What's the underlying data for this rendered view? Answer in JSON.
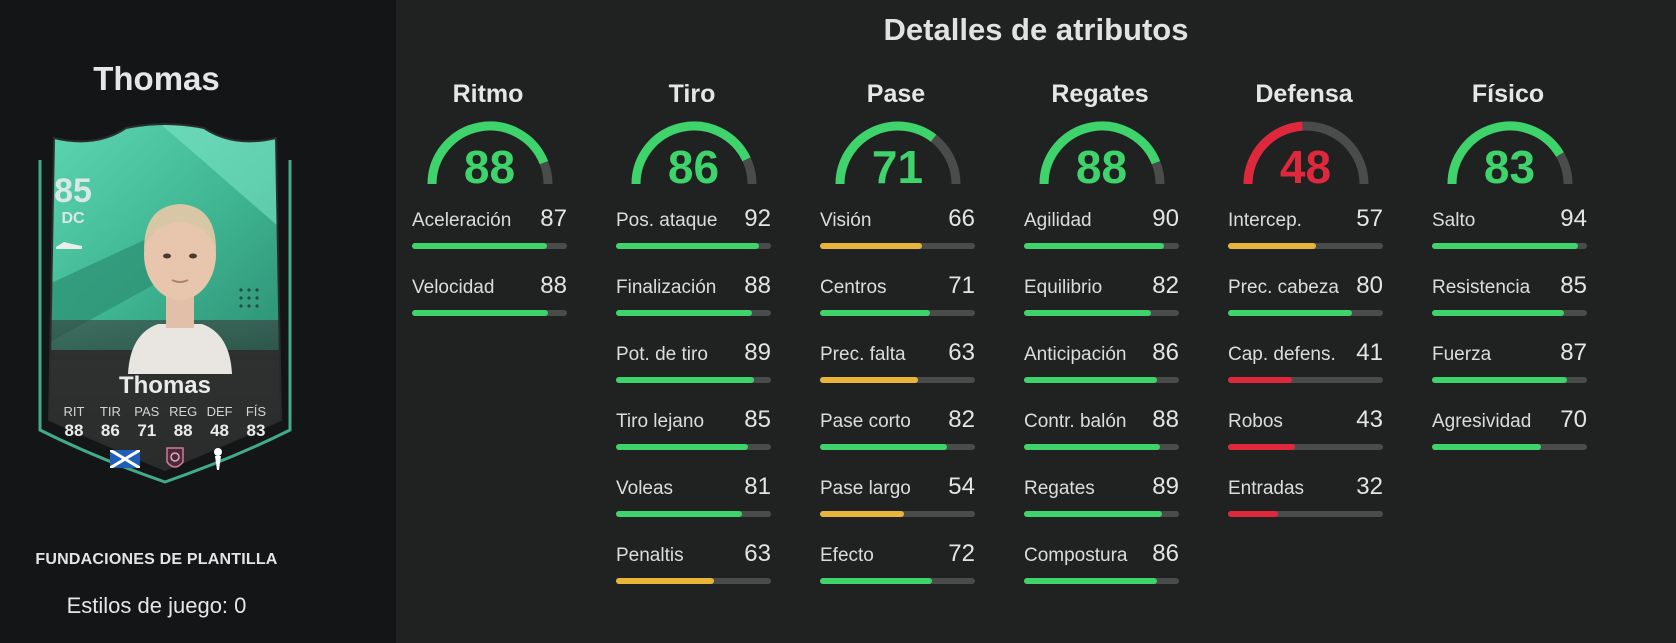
{
  "player": {
    "name": "Thomas",
    "card_name": "Thomas",
    "rating": "85",
    "position": "DC",
    "card_stats": [
      {
        "label": "RIT",
        "value": "88"
      },
      {
        "label": "TIR",
        "value": "86"
      },
      {
        "label": "PAS",
        "value": "71"
      },
      {
        "label": "REG",
        "value": "88"
      },
      {
        "label": "DEF",
        "value": "48"
      },
      {
        "label": "FÍS",
        "value": "83"
      }
    ],
    "badges": [
      "scotland-flag-icon",
      "wsl-league-icon",
      "tottenham-club-icon"
    ]
  },
  "squad_label": "FUNDACIONES DE PLANTILLA",
  "playstyles": "Estilos de juego: 0",
  "attributes": {
    "title": "Detalles de atributos",
    "colors": {
      "high": "#3ed36b",
      "mid": "#e8b53a",
      "low": "#e0283d",
      "track": "#4a4c4c"
    },
    "categories": [
      {
        "name": "Ritmo",
        "value": 88,
        "stats": [
          {
            "name": "Aceleración",
            "value": 87
          },
          {
            "name": "Velocidad",
            "value": 88
          }
        ]
      },
      {
        "name": "Tiro",
        "value": 86,
        "stats": [
          {
            "name": "Pos. ataque",
            "value": 92
          },
          {
            "name": "Finalización",
            "value": 88
          },
          {
            "name": "Pot. de tiro",
            "value": 89
          },
          {
            "name": "Tiro lejano",
            "value": 85
          },
          {
            "name": "Voleas",
            "value": 81
          },
          {
            "name": "Penaltis",
            "value": 63
          }
        ]
      },
      {
        "name": "Pase",
        "value": 71,
        "stats": [
          {
            "name": "Visión",
            "value": 66
          },
          {
            "name": "Centros",
            "value": 71
          },
          {
            "name": "Prec. falta",
            "value": 63
          },
          {
            "name": "Pase corto",
            "value": 82
          },
          {
            "name": "Pase largo",
            "value": 54
          },
          {
            "name": "Efecto",
            "value": 72
          }
        ]
      },
      {
        "name": "Regates",
        "value": 88,
        "stats": [
          {
            "name": "Agilidad",
            "value": 90
          },
          {
            "name": "Equilibrio",
            "value": 82
          },
          {
            "name": "Anticipación",
            "value": 86
          },
          {
            "name": "Contr. balón",
            "value": 88
          },
          {
            "name": "Regates",
            "value": 89
          },
          {
            "name": "Compostura",
            "value": 86
          }
        ]
      },
      {
        "name": "Defensa",
        "value": 48,
        "stats": [
          {
            "name": "Intercep.",
            "value": 57
          },
          {
            "name": "Prec. cabeza",
            "value": 80
          },
          {
            "name": "Cap. defens.",
            "value": 41
          },
          {
            "name": "Robos",
            "value": 43
          },
          {
            "name": "Entradas",
            "value": 32
          }
        ]
      },
      {
        "name": "Físico",
        "value": 83,
        "stats": [
          {
            "name": "Salto",
            "value": 94
          },
          {
            "name": "Resistencia",
            "value": 85
          },
          {
            "name": "Fuerza",
            "value": 87
          },
          {
            "name": "Agresividad",
            "value": 70
          }
        ]
      }
    ]
  }
}
